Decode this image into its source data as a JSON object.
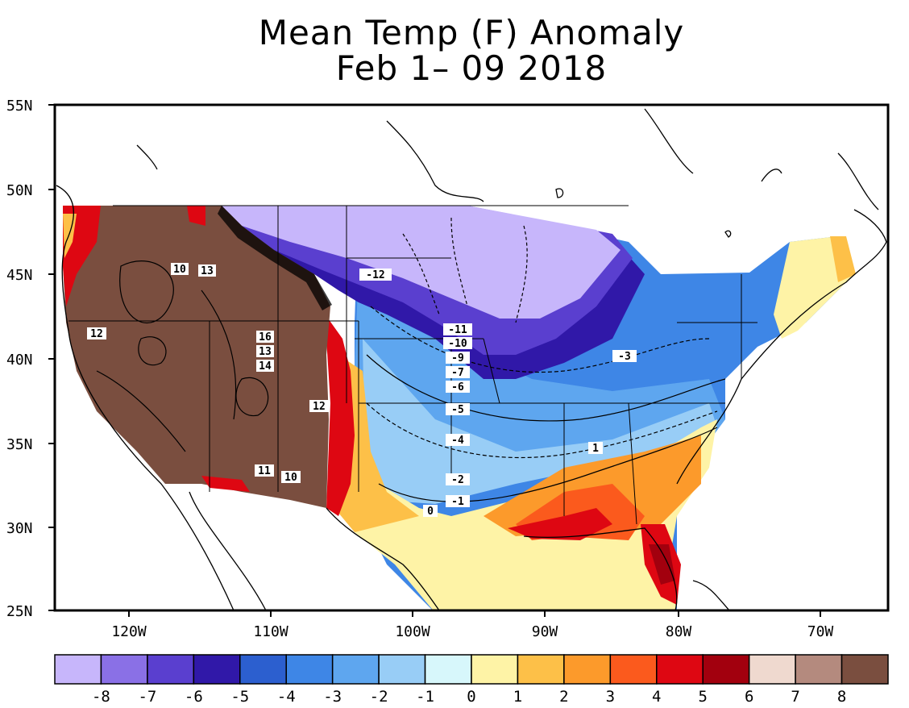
{
  "title": {
    "line1": "Mean Temp (F) Anomaly",
    "line2": "Feb 1– 09 2018"
  },
  "map": {
    "lat_ticks": [
      "55N",
      "50N",
      "45N",
      "40N",
      "35N",
      "30N",
      "25N"
    ],
    "lon_ticks": [
      "120W",
      "110W",
      "100W",
      "90W",
      "80W",
      "70W"
    ],
    "contour_labels": [
      "10",
      "13",
      "12",
      "16",
      "13",
      "14",
      "12",
      "11",
      "10",
      "-12",
      "-11",
      "-10",
      "-9",
      "-7",
      "-6",
      "-5",
      "-4",
      "-2",
      "-1",
      "0",
      "-3",
      "1"
    ]
  },
  "legend": {
    "labels": [
      "-8",
      "-7",
      "-6",
      "-5",
      "-4",
      "-3",
      "-2",
      "-1",
      "0",
      "1",
      "2",
      "3",
      "4",
      "5",
      "6",
      "7",
      "8"
    ],
    "colors": [
      "#c7b6fb",
      "#8a70e6",
      "#5a3fcf",
      "#3018a8",
      "#2c5fcf",
      "#3e86e6",
      "#5ea6ef",
      "#98cdf6",
      "#d7f7fb",
      "#fef3a6",
      "#fdc048",
      "#fc9a2b",
      "#fb5a1d",
      "#de0712",
      "#a2000e",
      "#efd9cf",
      "#b48a7e",
      "#7a4e3f"
    ]
  }
}
